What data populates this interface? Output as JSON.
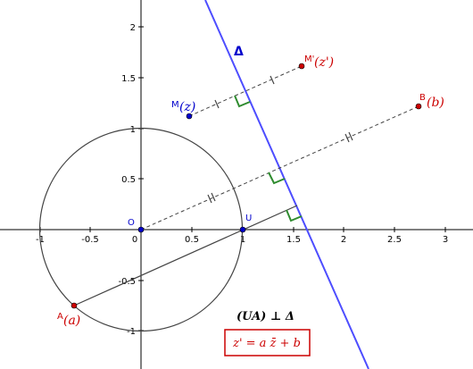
{
  "axes": {
    "x_labels": [
      "-1",
      "-0.5",
      "0",
      "0.5",
      "1",
      "1.5",
      "2",
      "2.5",
      "3"
    ],
    "y_labels": [
      "2",
      "1.5",
      "1",
      "0.5",
      "-0.5",
      "-1"
    ]
  },
  "points": {
    "O": "O",
    "U": "U",
    "A": "A",
    "A_value": "(a)",
    "M": "M",
    "M_value": "(z)",
    "M_prime": "M'",
    "M_prime_value": "(z')",
    "B": "B",
    "B_value": "(b)"
  },
  "line_label": "Δ",
  "relation": "(UA) ⊥ Δ",
  "formula": "z' = a z̄ + b"
}
